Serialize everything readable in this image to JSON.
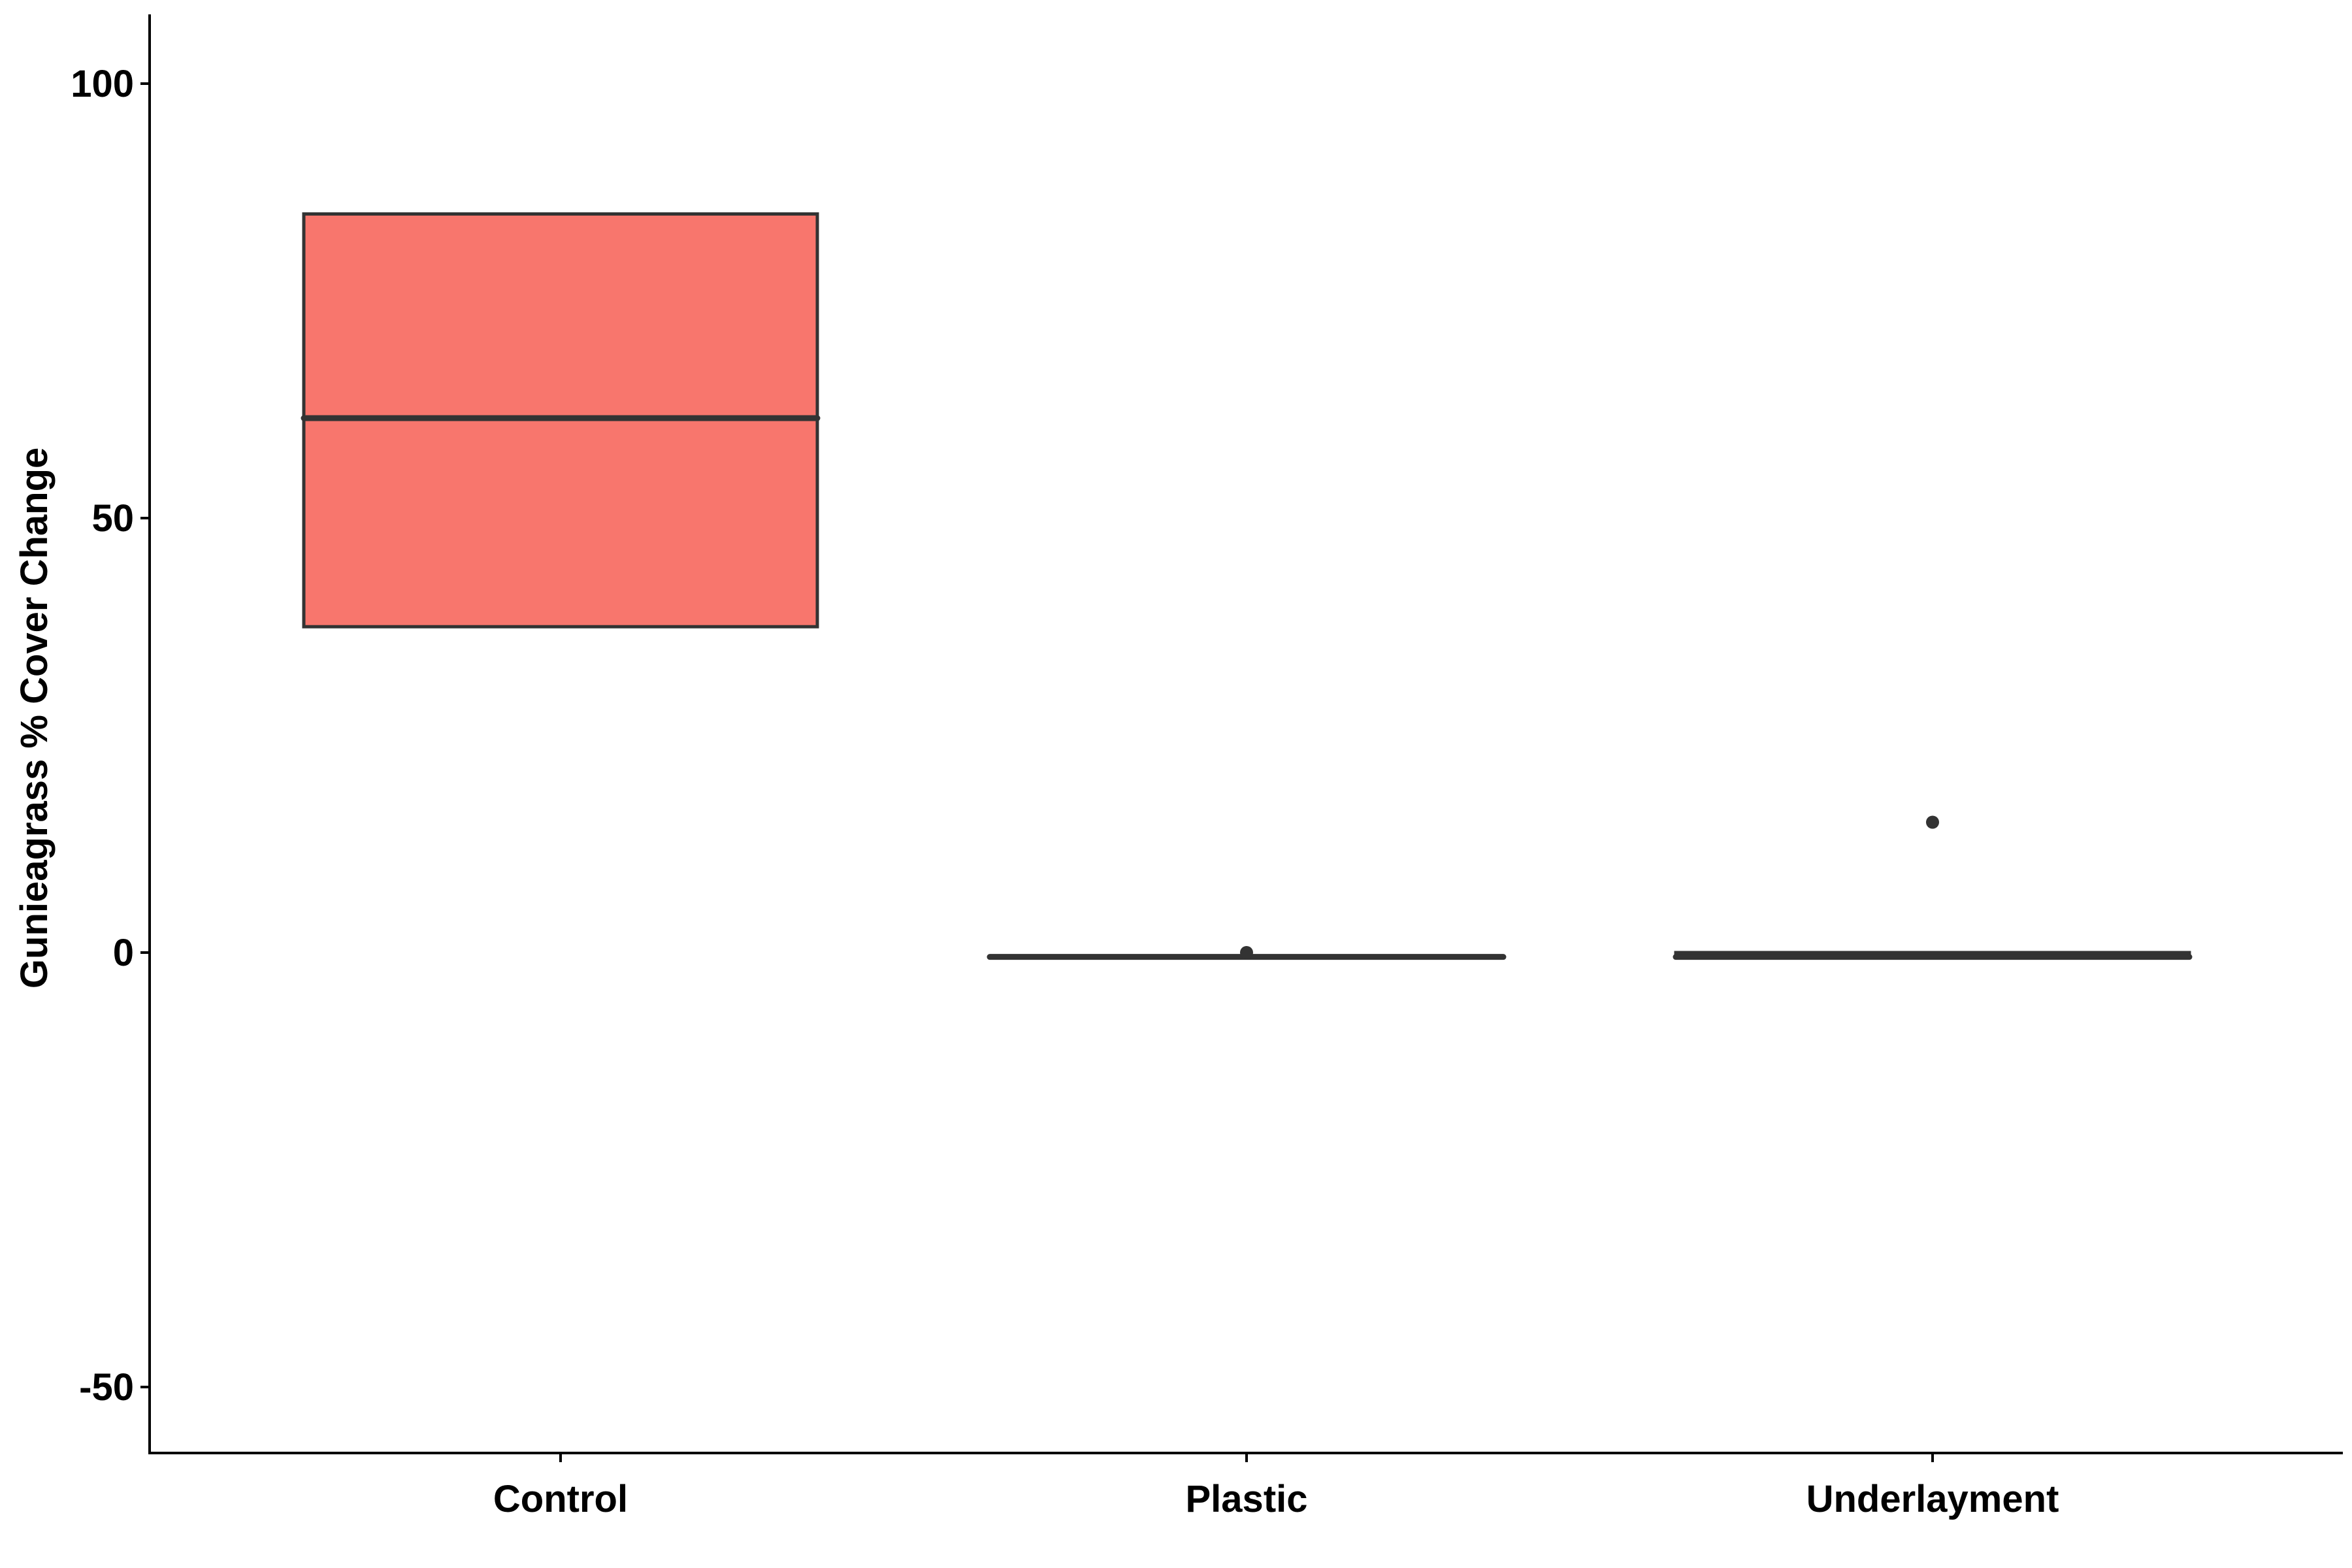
{
  "chart_data": {
    "type": "box",
    "title": "",
    "xlabel": "",
    "ylabel": "Gunieagrass % Cover Change",
    "ylim": [
      -58,
      107
    ],
    "yticks": [
      -50,
      0,
      50,
      100
    ],
    "ytick_labels": [
      "-50",
      "0",
      "50",
      "100"
    ],
    "categories": [
      "Control",
      "Plastic",
      "Underlayment"
    ],
    "grid": false,
    "legend": "none",
    "boxes": [
      {
        "category": "Control",
        "q1": 37.5,
        "median": 61.5,
        "q3": 85,
        "whisker_low": 37.5,
        "whisker_high": 85,
        "outliers": [],
        "fill": "#F8766D"
      },
      {
        "category": "Plastic",
        "q1": -0.5,
        "median": -0.5,
        "q3": -0.5,
        "whisker_low": -0.5,
        "whisker_high": -0.5,
        "outliers": [
          0
        ],
        "fill": "#00BA38"
      },
      {
        "category": "Underlayment",
        "q1": -0.5,
        "median": -0.5,
        "q3": 0,
        "whisker_low": -0.5,
        "whisker_high": 0,
        "outliers": [
          15
        ],
        "fill": "#619CFF"
      }
    ],
    "colors": {
      "box_outline": "#333333",
      "axis": "#000000"
    }
  }
}
